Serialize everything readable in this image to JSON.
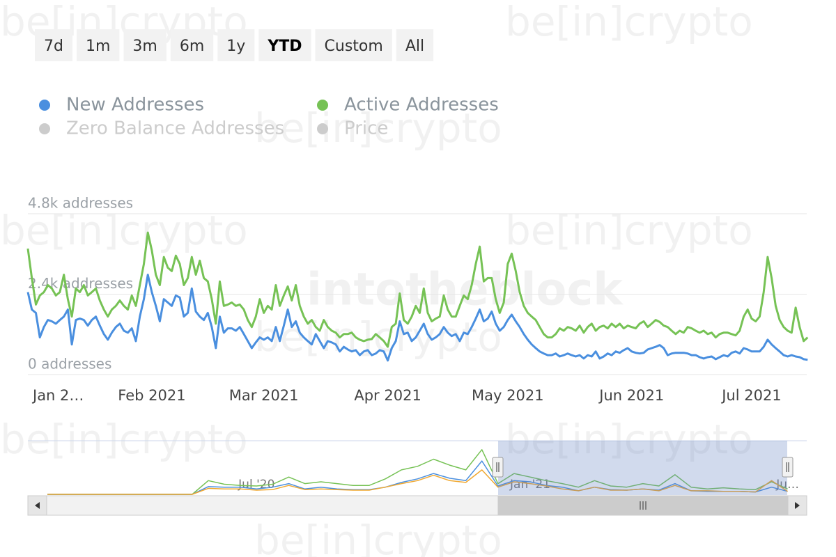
{
  "watermarks": [
    "be[in]crypto",
    "intotheblock"
  ],
  "range_buttons": [
    "7d",
    "1m",
    "3m",
    "6m",
    "1y",
    "YTD",
    "Custom",
    "All"
  ],
  "selected_range": 5,
  "chart_data": [
    {
      "type": "line",
      "categories": [
        "Jan 2…",
        null,
        null,
        null,
        null,
        null,
        null,
        null,
        null,
        null,
        null,
        null,
        null,
        null,
        null,
        null,
        null,
        null,
        null,
        null,
        null,
        null,
        null,
        null,
        null,
        null,
        null,
        null,
        null,
        null,
        null,
        "Feb 2021",
        null,
        null,
        null,
        null,
        null,
        null,
        null,
        null,
        null,
        null,
        null,
        null,
        null,
        null,
        null,
        null,
        null,
        null,
        null,
        null,
        null,
        null,
        null,
        null,
        null,
        null,
        null,
        "Mar 2021",
        null,
        null,
        null,
        null,
        null,
        null,
        null,
        null,
        null,
        null,
        null,
        null,
        null,
        null,
        null,
        null,
        null,
        null,
        null,
        null,
        null,
        null,
        null,
        null,
        null,
        null,
        null,
        null,
        null,
        null,
        "Apr 2021",
        null,
        null,
        null,
        null,
        null,
        null,
        null,
        null,
        null,
        null,
        null,
        null,
        null,
        null,
        null,
        null,
        null,
        null,
        null,
        null,
        null,
        null,
        null,
        null,
        null,
        null,
        null,
        null,
        null,
        "May 2021",
        null,
        null,
        null,
        null,
        null,
        null,
        null,
        null,
        null,
        null,
        null,
        null,
        null,
        null,
        null,
        null,
        null,
        null,
        null,
        null,
        null,
        null,
        null,
        null,
        null,
        null,
        null,
        null,
        null,
        null,
        "Jun 2021",
        null,
        null,
        null,
        null,
        null,
        null,
        null,
        null,
        null,
        null,
        null,
        null,
        null,
        null,
        null,
        null,
        null,
        null,
        null,
        null,
        null,
        null,
        null,
        null,
        null,
        null,
        null,
        null,
        null,
        "Jul 2021",
        null,
        null,
        null,
        null,
        null,
        null,
        null,
        null,
        null,
        null,
        null,
        null,
        null,
        null
      ],
      "series": [
        {
          "name": "New Addresses",
          "color": "#4a8fdf",
          "values": [
            2460,
            1940,
            1840,
            1110,
            1420,
            1630,
            1590,
            1520,
            1630,
            1730,
            1940,
            900,
            1630,
            1670,
            1630,
            1460,
            1630,
            1730,
            1460,
            1210,
            1040,
            1250,
            1420,
            1520,
            1310,
            1250,
            1380,
            1000,
            1730,
            2250,
            2980,
            2460,
            2050,
            1590,
            2250,
            2150,
            2050,
            2360,
            2300,
            1730,
            1840,
            2570,
            1880,
            1730,
            1630,
            1840,
            1420,
            790,
            1730,
            1250,
            1380,
            1380,
            1310,
            1420,
            1210,
            1000,
            790,
            960,
            1110,
            1040,
            1110,
            1000,
            1420,
            1000,
            1460,
            1940,
            1420,
            1590,
            1250,
            1110,
            1000,
            900,
            1210,
            1000,
            790,
            1000,
            960,
            900,
            690,
            830,
            750,
            690,
            730,
            580,
            690,
            730,
            580,
            630,
            730,
            690,
            420,
            790,
            1000,
            1590,
            1210,
            1250,
            1000,
            1110,
            1310,
            1520,
            1210,
            1040,
            1110,
            1210,
            1420,
            1250,
            1150,
            1210,
            1000,
            1250,
            1210,
            1420,
            1670,
            1940,
            1590,
            1670,
            1880,
            1520,
            1310,
            1420,
            1630,
            1790,
            1590,
            1420,
            1210,
            1040,
            900,
            790,
            690,
            630,
            580,
            580,
            630,
            540,
            580,
            630,
            580,
            540,
            580,
            480,
            580,
            540,
            690,
            480,
            540,
            630,
            580,
            690,
            650,
            730,
            790,
            690,
            650,
            630,
            650,
            750,
            790,
            830,
            880,
            790,
            580,
            630,
            650,
            650,
            650,
            630,
            580,
            580,
            520,
            480,
            520,
            540,
            460,
            520,
            580,
            540,
            650,
            690,
            630,
            790,
            750,
            690,
            690,
            690,
            830,
            1040,
            900,
            790,
            690,
            580,
            540,
            580,
            540,
            520,
            460,
            440
          ]
        },
        {
          "name": "Active Addresses",
          "color": "#76c255",
          "values": [
            3760,
            2880,
            2090,
            2360,
            2460,
            2670,
            2570,
            2360,
            2460,
            2980,
            2250,
            1730,
            2570,
            2460,
            2670,
            2360,
            2460,
            2570,
            2210,
            1940,
            1730,
            1940,
            2050,
            2210,
            2050,
            1940,
            2360,
            2050,
            2670,
            3300,
            4240,
            3710,
            2980,
            2670,
            3510,
            3190,
            3090,
            3550,
            3300,
            2670,
            2880,
            3510,
            2980,
            3400,
            2880,
            2780,
            2250,
            1520,
            2780,
            2050,
            2090,
            2150,
            2050,
            2090,
            1940,
            1630,
            1420,
            1730,
            2250,
            1840,
            2050,
            1940,
            2670,
            2050,
            2360,
            2630,
            2210,
            2670,
            2050,
            1730,
            1520,
            1630,
            1420,
            1310,
            1630,
            1420,
            1310,
            1250,
            1110,
            1210,
            1210,
            1250,
            1110,
            1040,
            1000,
            1040,
            1060,
            1210,
            1110,
            1000,
            830,
            1420,
            1520,
            2420,
            1630,
            1520,
            1730,
            2050,
            1840,
            2570,
            1840,
            1590,
            1670,
            1730,
            2360,
            1940,
            1730,
            1730,
            2050,
            2360,
            2250,
            2670,
            3300,
            3820,
            2780,
            2880,
            2880,
            2250,
            1840,
            2150,
            3300,
            3610,
            3090,
            2460,
            2050,
            1840,
            1730,
            1630,
            1420,
            1210,
            1110,
            1110,
            1210,
            1380,
            1310,
            1420,
            1380,
            1310,
            1460,
            1250,
            1420,
            1520,
            1310,
            1420,
            1460,
            1380,
            1520,
            1420,
            1520,
            1380,
            1460,
            1420,
            1380,
            1520,
            1590,
            1420,
            1520,
            1630,
            1570,
            1460,
            1420,
            1310,
            1210,
            1310,
            1250,
            1420,
            1380,
            1310,
            1250,
            1310,
            1210,
            1250,
            1110,
            1210,
            1250,
            1250,
            1210,
            1170,
            1310,
            1730,
            1940,
            1670,
            1590,
            1730,
            2460,
            3510,
            2880,
            2050,
            1630,
            1420,
            1310,
            1250,
            2000,
            1420,
            1000,
            1110
          ]
        },
        {
          "name": "Zero Balance Addresses",
          "color": "#cccccc",
          "visible": false
        },
        {
          "name": "Price",
          "color": "#cccccc",
          "visible": false
        }
      ],
      "ylim": [
        0,
        4800
      ],
      "yticks": [
        {
          "value": 0,
          "label": "0 addresses"
        },
        {
          "value": 2400,
          "label": "2.4k addresses"
        },
        {
          "value": 4800,
          "label": "4.8k addresses"
        }
      ],
      "grid": true
    },
    {
      "type": "line",
      "categories": [
        null,
        null,
        null,
        null,
        null,
        null,
        null,
        null,
        null,
        null,
        null,
        null,
        null,
        "Jul '20",
        null,
        null,
        null,
        null,
        null,
        null,
        null,
        null,
        null,
        null,
        null,
        null,
        null,
        null,
        null,
        null,
        "Jan '21",
        null,
        null,
        null,
        null,
        null,
        null,
        null,
        null,
        null,
        null,
        null,
        null,
        null,
        null,
        null,
        "Ju…"
      ],
      "series": [
        {
          "color": "#76c255",
          "values": [
            0,
            0,
            0,
            0,
            0,
            0,
            0,
            0,
            0,
            0,
            2300,
            1700,
            1500,
            1400,
            1700,
            2900,
            1800,
            2100,
            1800,
            1500,
            1500,
            2600,
            4100,
            4700,
            5900,
            4900,
            4100,
            7500,
            1800,
            3500,
            2900,
            2300,
            1800,
            1200,
            2300,
            1400,
            1200,
            1800,
            1400,
            3300,
            1200,
            900,
            1100,
            900,
            800,
            2100,
            900
          ]
        },
        {
          "color": "#4a8fdf",
          "values": [
            0,
            0,
            0,
            0,
            0,
            0,
            0,
            0,
            0,
            0,
            1300,
            1200,
            1200,
            900,
            1200,
            1800,
            900,
            1200,
            900,
            800,
            800,
            1200,
            2000,
            2600,
            3500,
            2700,
            2300,
            5600,
            1400,
            2300,
            2100,
            1500,
            1200,
            600,
            1200,
            800,
            700,
            900,
            700,
            1800,
            600,
            500,
            500,
            500,
            400,
            1200,
            500
          ]
        },
        {
          "color": "#f0a830",
          "values": [
            0,
            0,
            0,
            0,
            0,
            0,
            0,
            0,
            0,
            0,
            1000,
            900,
            900,
            700,
            800,
            1500,
            800,
            900,
            800,
            700,
            700,
            1200,
            1800,
            2300,
            3200,
            2300,
            2000,
            4100,
            1200,
            2100,
            1800,
            1400,
            900,
            600,
            1200,
            700,
            700,
            900,
            600,
            1500,
            600,
            600,
            500,
            500,
            400,
            2300,
            500
          ]
        }
      ],
      "ylim": [
        0,
        9000
      ]
    }
  ]
}
